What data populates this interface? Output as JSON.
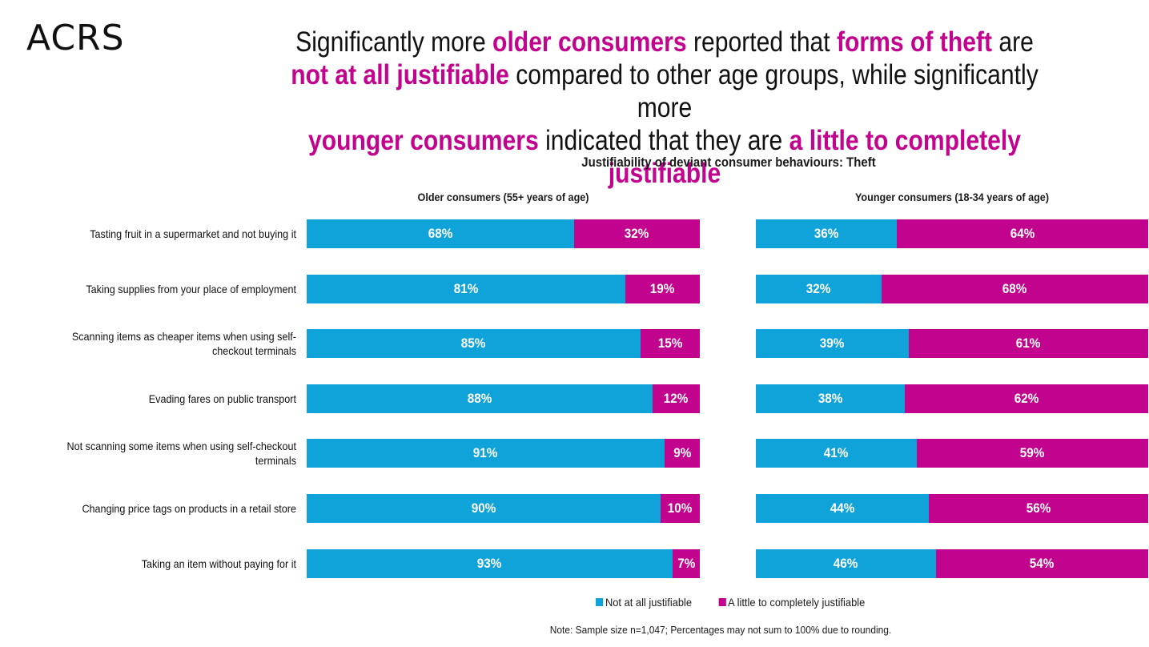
{
  "logo": "ACRS",
  "headline": {
    "parts": [
      {
        "text": "Significantly more ",
        "highlight": false
      },
      {
        "text": "older consumers",
        "highlight": true
      },
      {
        "text": " reported that ",
        "highlight": false
      },
      {
        "text": "forms of theft",
        "highlight": true
      },
      {
        "text": " are ",
        "highlight": false
      },
      {
        "text": "not at all justifiable",
        "highlight": true
      },
      {
        "text": " compared to other age groups, while significantly more ",
        "highlight": false
      },
      {
        "text": "younger consumers",
        "highlight": true
      },
      {
        "text": " indicated that they are ",
        "highlight": false
      },
      {
        "text": "a little to completely justifiable",
        "highlight": true
      }
    ]
  },
  "colors": {
    "not_justifiable": "#0fa3d9",
    "justifiable": "#c2038e",
    "highlight": "#c2038e"
  },
  "chart_data": {
    "type": "bar",
    "orientation": "horizontal-stacked-100",
    "title": "Justifiability of deviant consumer behaviours: Theft",
    "categories": [
      "Tasting fruit in a supermarket and not buying it",
      "Taking supplies from your place of employment",
      "Scanning items as cheaper items when using self-checkout terminals",
      "Evading fares on public transport",
      "Not scanning some items when using self-checkout terminals",
      "Changing price tags on products in a retail store",
      "Taking an item without paying for it"
    ],
    "panels": [
      {
        "name": "Older consumers (55+ years of age)",
        "series": [
          {
            "name": "Not at all justifiable",
            "values": [
              68,
              81,
              85,
              88,
              91,
              90,
              93
            ]
          },
          {
            "name": "A little to completely justifiable",
            "values": [
              32,
              19,
              15,
              12,
              9,
              10,
              7
            ]
          }
        ]
      },
      {
        "name": "Younger consumers (18-34 years of age)",
        "series": [
          {
            "name": "Not at all justifiable",
            "values": [
              36,
              32,
              39,
              38,
              41,
              44,
              46
            ]
          },
          {
            "name": "A little to completely justifiable",
            "values": [
              64,
              68,
              61,
              62,
              59,
              56,
              54
            ]
          }
        ]
      }
    ],
    "value_suffix": "%",
    "legend": [
      "Not at all justifiable",
      "A little to completely justifiable"
    ],
    "legend_position": "bottom"
  },
  "note": "Note: Sample size n=1,047; Percentages may not sum to 100% due to rounding."
}
